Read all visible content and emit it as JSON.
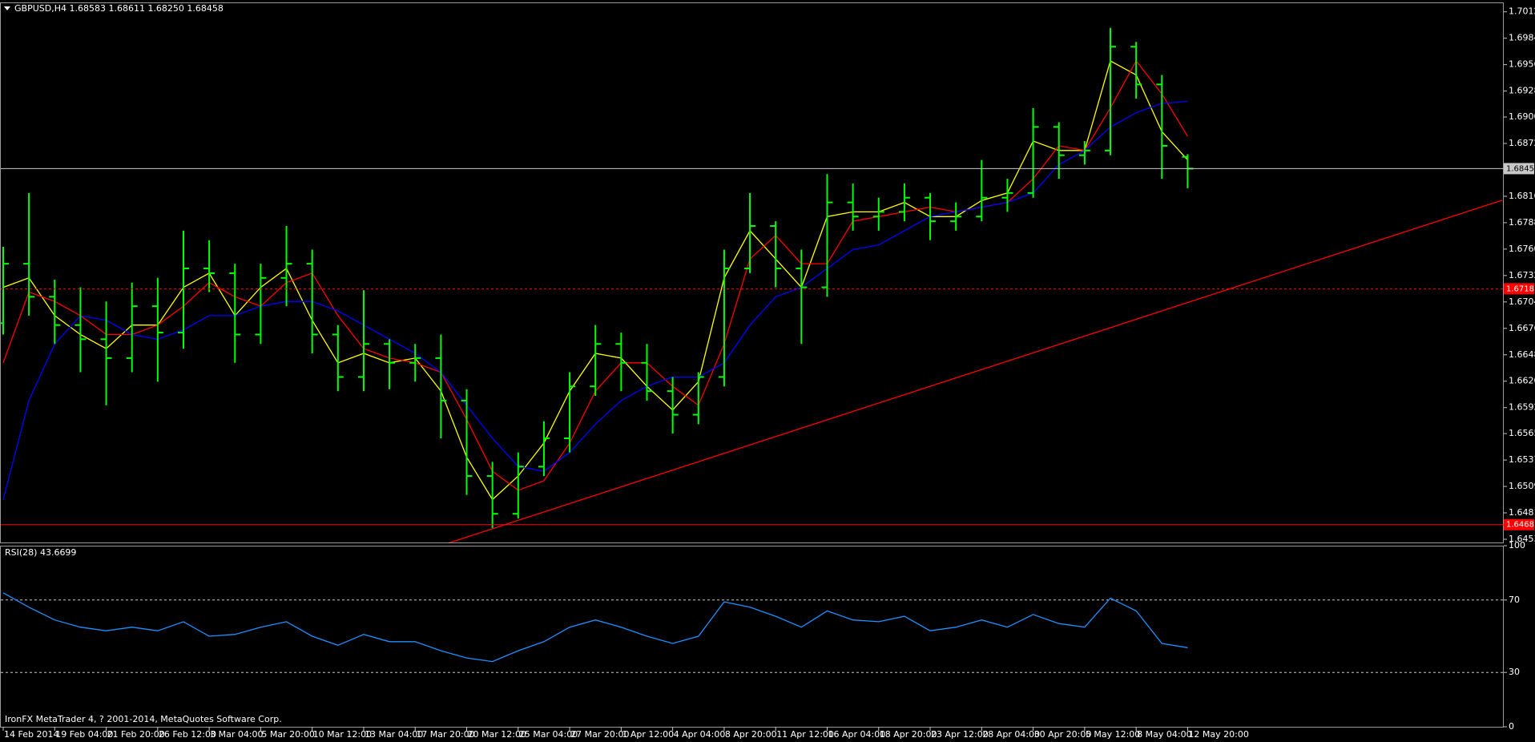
{
  "chart_data": [
    {
      "type": "candlestick",
      "title": "GBPUSD,H4  1.68583 1.68611 1.68250 1.68458",
      "footer": "IronFX MetaTrader 4, ? 2001-2014, MetaQuotes Software Corp.",
      "color": "#00ff00",
      "categories": [
        "14 Feb 2014",
        null,
        "19 Feb 04:00",
        null,
        "21 Feb 20:00",
        null,
        "26 Feb 12:00",
        null,
        "3 Mar 04:00",
        null,
        "5 Mar 20:00",
        null,
        "10 Mar 12:00",
        null,
        "13 Mar 04:00",
        null,
        "17 Mar 20:00",
        null,
        "20 Mar 12:00",
        null,
        "25 Mar 04:00",
        null,
        "27 Mar 20:00",
        null,
        "1 Apr 12:00",
        null,
        "4 Apr 04:00",
        null,
        "8 Apr 20:00",
        null,
        "11 Apr 12:00",
        null,
        "16 Apr 04:00",
        null,
        "18 Apr 20:00",
        null,
        "23 Apr 12:00",
        null,
        "28 Apr 04:00",
        null,
        "30 Apr 20:00",
        null,
        "5 May 12:00",
        null,
        "8 May 04:00",
        null,
        "12 May 20:00"
      ],
      "open": [
        1.6682,
        1.6745,
        1.671,
        1.668,
        1.6665,
        1.6645,
        1.67,
        1.6672,
        1.674,
        1.6735,
        1.667,
        1.673,
        1.6745,
        1.667,
        1.6625,
        1.666,
        1.664,
        1.6645,
        1.66,
        1.652,
        1.648,
        1.653,
        1.656,
        1.6615,
        1.666,
        1.664,
        1.661,
        1.6585,
        1.6625,
        1.674,
        1.6785,
        1.674,
        1.672,
        1.681,
        1.6795,
        1.68,
        1.6815,
        1.679,
        1.6795,
        1.6815,
        1.682,
        1.689,
        1.686,
        1.6865,
        1.6975,
        1.6935,
        1.68583
      ],
      "high": [
        1.6763,
        1.682,
        1.6728,
        1.672,
        1.6705,
        1.6725,
        1.673,
        1.678,
        1.677,
        1.6745,
        1.6745,
        1.6785,
        1.676,
        1.668,
        1.6717,
        1.6665,
        1.666,
        1.667,
        1.6612,
        1.6535,
        1.6545,
        1.6578,
        1.663,
        1.668,
        1.6672,
        1.666,
        1.6625,
        1.663,
        1.676,
        1.682,
        1.679,
        1.676,
        1.684,
        1.683,
        1.6815,
        1.683,
        1.682,
        1.681,
        1.6855,
        1.6835,
        1.691,
        1.6895,
        1.6875,
        1.6995,
        1.698,
        1.6945,
        1.68611
      ],
      "low": [
        1.667,
        1.669,
        1.666,
        1.663,
        1.6595,
        1.663,
        1.662,
        1.6655,
        1.6715,
        1.664,
        1.666,
        1.67,
        1.665,
        1.661,
        1.661,
        1.6612,
        1.662,
        1.656,
        1.65,
        1.6465,
        1.6475,
        1.652,
        1.6545,
        1.6605,
        1.661,
        1.66,
        1.6565,
        1.6575,
        1.6615,
        1.6735,
        1.672,
        1.666,
        1.671,
        1.678,
        1.678,
        1.679,
        1.677,
        1.678,
        1.679,
        1.68,
        1.6815,
        1.6835,
        1.685,
        1.686,
        1.692,
        1.6835,
        1.6825
      ],
      "close": [
        1.6745,
        1.671,
        1.668,
        1.6665,
        1.6645,
        1.67,
        1.6672,
        1.674,
        1.6735,
        1.667,
        1.673,
        1.6745,
        1.667,
        1.6625,
        1.666,
        1.664,
        1.6645,
        1.66,
        1.652,
        1.648,
        1.653,
        1.656,
        1.6615,
        1.666,
        1.664,
        1.661,
        1.6585,
        1.6625,
        1.674,
        1.6785,
        1.674,
        1.672,
        1.681,
        1.6795,
        1.68,
        1.6815,
        1.679,
        1.6795,
        1.6815,
        1.682,
        1.689,
        1.686,
        1.6865,
        1.6975,
        1.6935,
        1.687,
        1.68458
      ],
      "overlays": [
        {
          "color": "#ffff00",
          "values": [
            1.672,
            1.673,
            1.669,
            1.667,
            1.6655,
            1.668,
            1.668,
            1.672,
            1.6735,
            1.669,
            1.672,
            1.674,
            1.6685,
            1.664,
            1.665,
            1.664,
            1.6645,
            1.661,
            1.654,
            1.6495,
            1.652,
            1.6555,
            1.661,
            1.665,
            1.6645,
            1.6615,
            1.659,
            1.662,
            1.673,
            1.678,
            1.675,
            1.672,
            1.6795,
            1.68,
            1.68,
            1.681,
            1.6795,
            1.6795,
            1.6812,
            1.682,
            1.6875,
            1.6865,
            1.6865,
            1.696,
            1.6945,
            1.6885,
            1.6855
          ]
        },
        {
          "color": "#ff0000",
          "values": [
            1.664,
            1.6715,
            1.6705,
            1.669,
            1.667,
            1.667,
            1.668,
            1.67,
            1.6725,
            1.671,
            1.67,
            1.6725,
            1.6735,
            1.669,
            1.6655,
            1.6645,
            1.664,
            1.663,
            1.658,
            1.6525,
            1.6505,
            1.6515,
            1.6555,
            1.661,
            1.664,
            1.664,
            1.6615,
            1.6595,
            1.666,
            1.675,
            1.6775,
            1.6745,
            1.6745,
            1.679,
            1.6795,
            1.68,
            1.6805,
            1.68,
            1.6805,
            1.681,
            1.6835,
            1.687,
            1.6865,
            1.691,
            1.696,
            1.6925,
            1.688
          ]
        },
        {
          "color": "#0000ff",
          "values": [
            1.6495,
            1.66,
            1.666,
            1.669,
            1.6685,
            1.667,
            1.6665,
            1.6675,
            1.669,
            1.669,
            1.67,
            1.6705,
            1.6705,
            1.6695,
            1.668,
            1.6665,
            1.665,
            1.663,
            1.6595,
            1.656,
            1.653,
            1.6525,
            1.6545,
            1.6575,
            1.66,
            1.6615,
            1.6625,
            1.6625,
            1.664,
            1.668,
            1.671,
            1.672,
            1.674,
            1.676,
            1.6765,
            1.678,
            1.6795,
            1.68,
            1.6805,
            1.681,
            1.682,
            1.685,
            1.6865,
            1.689,
            1.6905,
            1.6915,
            1.6917
          ]
        }
      ],
      "hlines": [
        {
          "value": 1.68458,
          "color": "#c8c8c8",
          "dashed": false
        },
        {
          "value": 1.67185,
          "color": "#ff0000",
          "dashed": true
        },
        {
          "value": 1.64685,
          "color": "#ff0000",
          "dashed": false
        }
      ],
      "trendline": {
        "x": [
          "20 Mar 12:00",
          "12 May 20:00"
        ],
        "values": [
          1.64553,
          1.67039
        ],
        "color": "#ff0000"
      },
      "ylim": [
        1.64496,
        1.70211
      ],
      "yticks": [
        {
          "value": 1.7012,
          "label": "1.70120"
        },
        {
          "value": 1.6984,
          "label": "1.69840"
        },
        {
          "value": 1.6956,
          "label": "1.69560"
        },
        {
          "value": 1.6928,
          "label": "1.69280"
        },
        1.69005,
        1.68725,
        1.68165,
        1.67885,
        1.67605,
        1.67325,
        1.67045,
        1.66765,
        1.66485,
        1.66205,
        1.65925,
        {
          "value": 1.6565,
          "label": "1.65650"
        },
        {
          "value": 1.6537,
          "label": "1.65370"
        },
        {
          "value": 1.6509,
          "label": "1.65090"
        },
        {
          "value": 1.6481,
          "label": "1.64810"
        },
        {
          "value": 1.6453,
          "label": "1.64530"
        }
      ]
    },
    {
      "type": "line",
      "title": "RSI(28) 43.6699",
      "color": "#1e90ff",
      "values": [
        74,
        66,
        59,
        55,
        53,
        55,
        53,
        58,
        50,
        51,
        55,
        58,
        50,
        45,
        51,
        47,
        47,
        42,
        38,
        36,
        42,
        47,
        55,
        59,
        55,
        50,
        46,
        50,
        69,
        66,
        61,
        55,
        64,
        59,
        58,
        61,
        53,
        55,
        59,
        55,
        62,
        57,
        55,
        71,
        64,
        46,
        43.6699
      ],
      "ylim": [
        0,
        100
      ],
      "yticks": [
        100,
        70,
        30,
        0
      ]
    }
  ]
}
